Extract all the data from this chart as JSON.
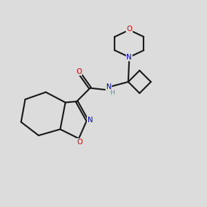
{
  "bg_color": "#dcdcdc",
  "bond_color": "#1a1a1a",
  "atom_colors": {
    "O": "#cc0000",
    "N": "#0000cc",
    "H": "#4a9a8a",
    "C": "#1a1a1a"
  }
}
